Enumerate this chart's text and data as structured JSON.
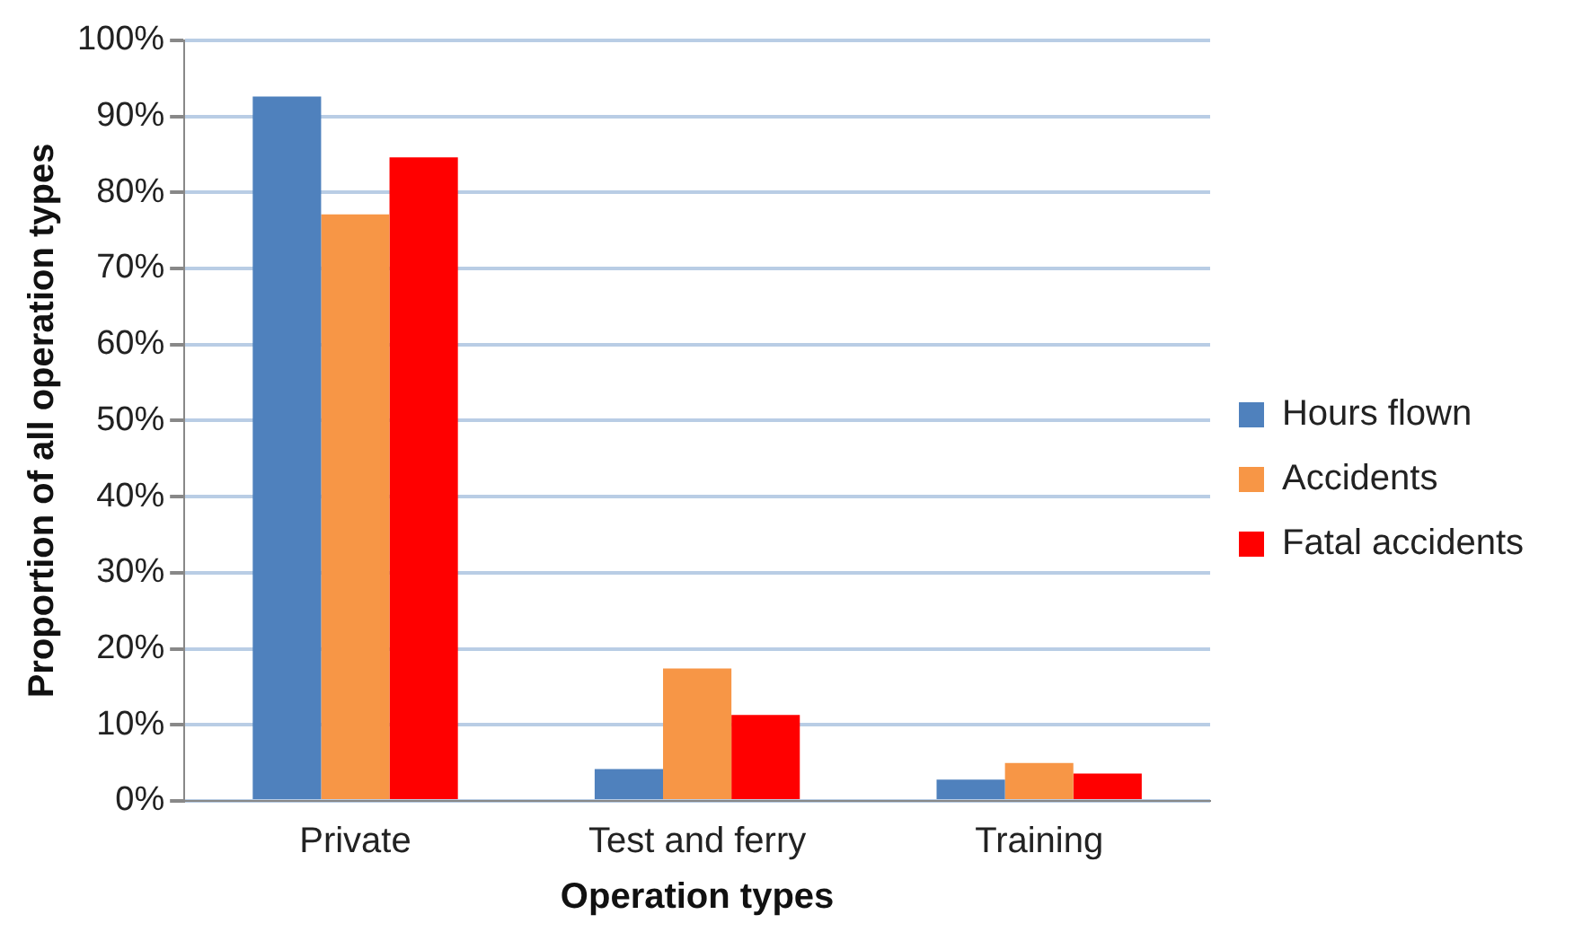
{
  "chart_data": {
    "type": "bar",
    "xlabel": "Operation types",
    "ylabel": "Proportion of all operation types",
    "categories": [
      "Private",
      "Test and ferry",
      "Training"
    ],
    "series": [
      {
        "name": "Hours flown",
        "color": "#4f81bd",
        "values": [
          92.6,
          4.2,
          2.8
        ]
      },
      {
        "name": "Accidents",
        "color": "#f79646",
        "values": [
          77.1,
          17.4,
          5.0
        ]
      },
      {
        "name": "Fatal accidents",
        "color": "#ff0000",
        "values": [
          84.6,
          11.3,
          3.6
        ]
      }
    ],
    "ylim": [
      0,
      100
    ],
    "yticks": [
      {
        "value": 0,
        "label": "0%"
      },
      {
        "value": 10,
        "label": "10%"
      },
      {
        "value": 20,
        "label": "20%"
      },
      {
        "value": 30,
        "label": "30%"
      },
      {
        "value": 40,
        "label": "40%"
      },
      {
        "value": 50,
        "label": "50%"
      },
      {
        "value": 60,
        "label": "60%"
      },
      {
        "value": 70,
        "label": "70%"
      },
      {
        "value": 80,
        "label": "80%"
      },
      {
        "value": 90,
        "label": "90%"
      },
      {
        "value": 100,
        "label": "100%"
      }
    ],
    "grid": "y",
    "legend": "right"
  }
}
